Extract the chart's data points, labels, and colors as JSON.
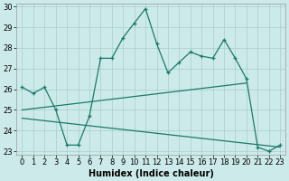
{
  "xlabel": "Humidex (Indice chaleur)",
  "bg_color": "#cceaea",
  "grid_color": "#aacccc",
  "line_color": "#1a7a6a",
  "xmin": 0,
  "xmax": 23,
  "ymin": 23,
  "ymax": 30,
  "line1_x": [
    0,
    1,
    2,
    3,
    4,
    5,
    6,
    7,
    8,
    9,
    10,
    11,
    12,
    13,
    14,
    15,
    16,
    17,
    18,
    19,
    20,
    21,
    22,
    23
  ],
  "line1_y": [
    26.1,
    25.8,
    26.1,
    25.0,
    23.3,
    23.3,
    24.7,
    27.5,
    27.5,
    28.5,
    29.2,
    29.9,
    28.2,
    26.8,
    27.3,
    27.8,
    27.6,
    27.5,
    28.4,
    27.5,
    26.5,
    23.2,
    23.0,
    23.3
  ],
  "line2_x": [
    0,
    20
  ],
  "line2_y": [
    25.0,
    26.3
  ],
  "line3_x": [
    0,
    23
  ],
  "line3_y": [
    24.6,
    23.2
  ],
  "yticks": [
    23,
    24,
    25,
    26,
    27,
    28,
    29,
    30
  ],
  "xticks": [
    0,
    1,
    2,
    3,
    4,
    5,
    6,
    7,
    8,
    9,
    10,
    11,
    12,
    13,
    14,
    15,
    16,
    17,
    18,
    19,
    20,
    21,
    22,
    23
  ],
  "marker": "+",
  "markersize": 3.5,
  "linewidth": 0.9,
  "fontsize_label": 7,
  "fontsize_tick": 6
}
